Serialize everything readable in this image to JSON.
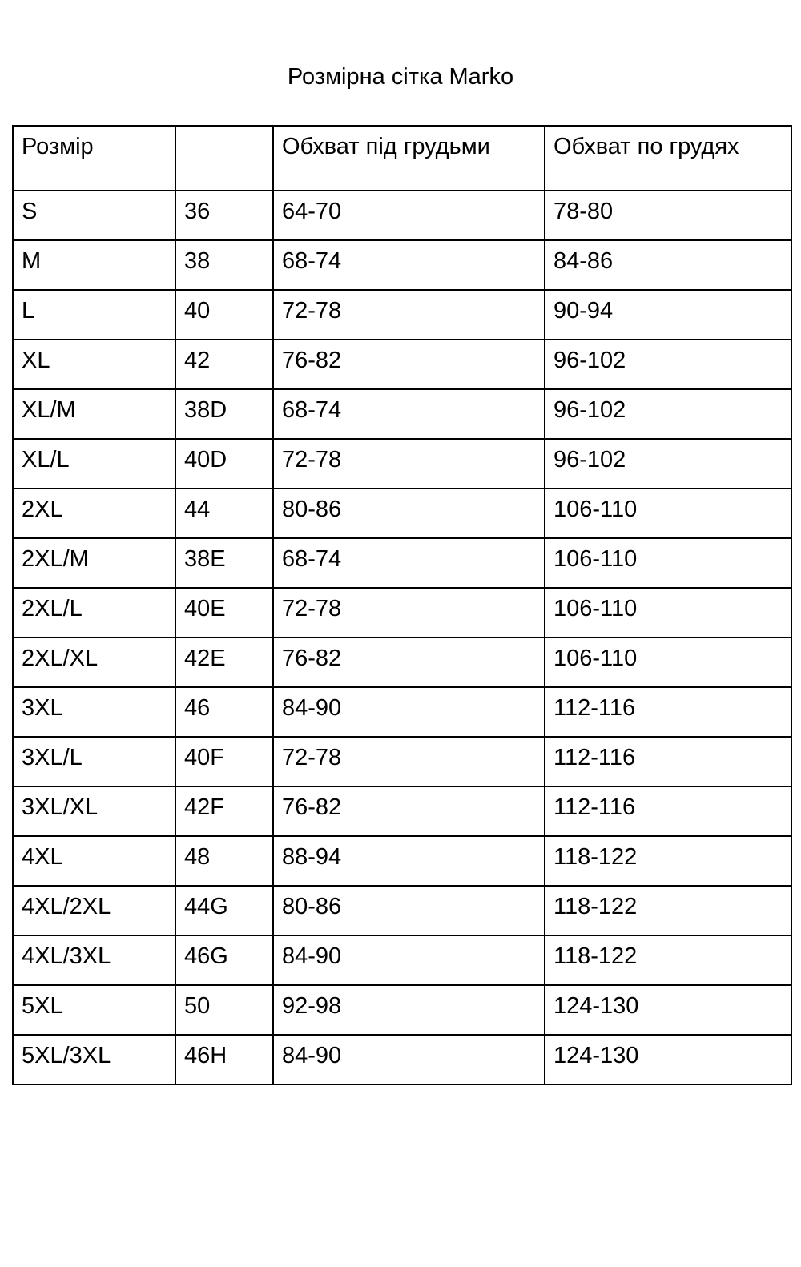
{
  "page": {
    "title": "Розмірна сітка Marko"
  },
  "colors": {
    "background": "#ffffff",
    "border": "#000000",
    "text": "#000000"
  },
  "table": {
    "headers": [
      "Розмір",
      "",
      "Обхват під грудьми",
      "Обхват по грудях"
    ],
    "rows": [
      [
        "S",
        "36",
        "64-70",
        "78-80"
      ],
      [
        "M",
        "38",
        "68-74",
        "84-86"
      ],
      [
        "L",
        "40",
        "72-78",
        "90-94"
      ],
      [
        "XL",
        "42",
        "76-82",
        "96-102"
      ],
      [
        "XL/M",
        "38D",
        "68-74",
        "96-102"
      ],
      [
        "XL/L",
        "40D",
        "72-78",
        "96-102"
      ],
      [
        "2XL",
        "44",
        "80-86",
        "106-110"
      ],
      [
        "2XL/M",
        "38E",
        "68-74",
        "106-110"
      ],
      [
        "2XL/L",
        "40E",
        "72-78",
        "106-110"
      ],
      [
        "2XL/XL",
        "42E",
        "76-82",
        "106-110"
      ],
      [
        "3XL",
        "46",
        "84-90",
        "112-116"
      ],
      [
        "3XL/L",
        "40F",
        "72-78",
        "112-116"
      ],
      [
        "3XL/XL",
        "42F",
        "76-82",
        "112-116"
      ],
      [
        "4XL",
        "48",
        "88-94",
        "118-122"
      ],
      [
        "4XL/2XL",
        "44G",
        "80-86",
        "118-122"
      ],
      [
        "4XL/3XL",
        "46G",
        "84-90",
        "118-122"
      ],
      [
        "5XL",
        "50",
        "92-98",
        "124-130"
      ],
      [
        "5XL/3XL",
        "46H",
        "84-90",
        "124-130"
      ]
    ]
  }
}
